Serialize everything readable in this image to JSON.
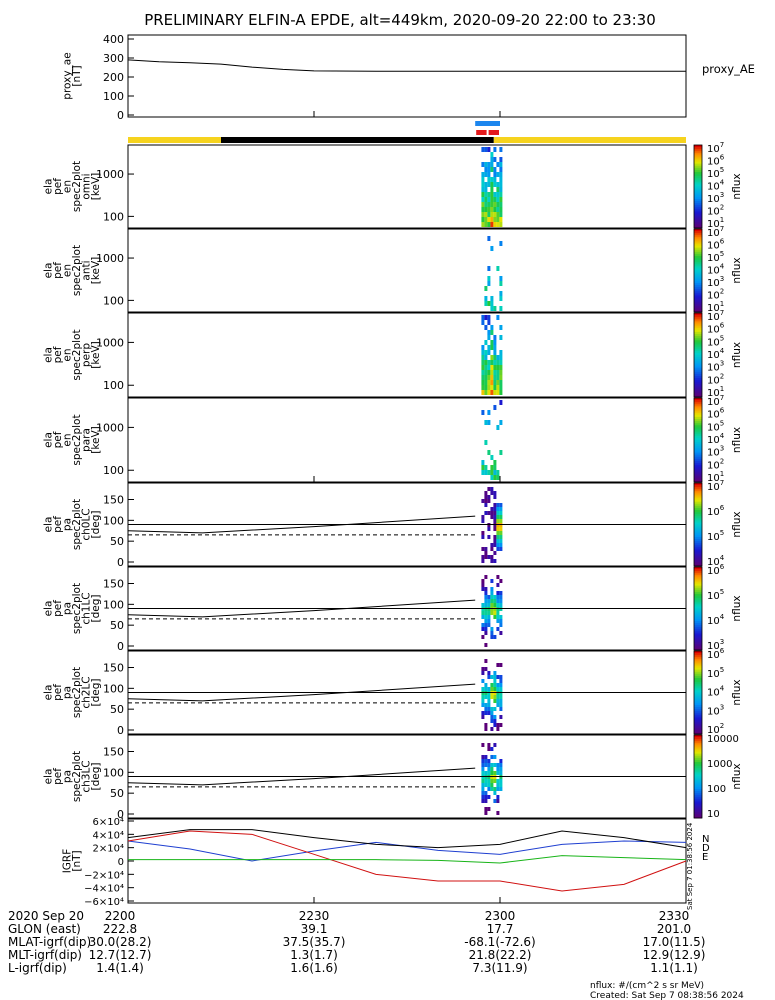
{
  "title": "PRELIMINARY ELFIN-A EPDE, alt=449km, 2020-09-20 22:00 to 23:30",
  "colors": {
    "yellow": "#f6d31e",
    "black": "#000000",
    "blue": "#1c86ee",
    "red": "#e41a1c",
    "bx": "#1f3fd0",
    "by": "#d01010",
    "bz": "#18b418"
  },
  "time_axis": {
    "start": "22:00",
    "end": "23:30",
    "ticks": [
      "2200",
      "2230",
      "2300",
      "2330"
    ]
  },
  "chart_data": [
    {
      "type": "line",
      "name": "proxy_ae",
      "ylabel_lines": [
        "proxy_ae",
        "[nT]"
      ],
      "legend": "proxy_AE",
      "yticks": [
        "400",
        "300",
        "200",
        "100",
        "0"
      ],
      "ylim": [
        0,
        400
      ],
      "x": [
        "22:00",
        "22:05",
        "22:10",
        "22:15",
        "22:20",
        "22:25",
        "22:30",
        "22:40",
        "22:50",
        "23:00",
        "23:30"
      ],
      "values": [
        290,
        280,
        275,
        268,
        252,
        240,
        232,
        230,
        230,
        230,
        230
      ]
    },
    {
      "type": "bar",
      "name": "status-bars",
      "segments": [
        {
          "from": "22:00",
          "to": "22:15",
          "color": "yellow"
        },
        {
          "from": "22:15",
          "to": "22:59",
          "color": "black"
        },
        {
          "from": "22:59",
          "to": "23:30",
          "color": "yellow"
        }
      ],
      "science_blue": [
        {
          "from": "22:56",
          "to": "23:00"
        }
      ],
      "science_red": [
        {
          "from": "22:56",
          "to": "22:58"
        },
        {
          "from": "22:58",
          "to": "23:00"
        }
      ]
    },
    {
      "type": "heatmap",
      "name": "spec-omni",
      "ylabel_lines": [
        "ela",
        "pef",
        "en",
        "spec2plot",
        "omni",
        "[keV]"
      ],
      "yticks": [
        "1000",
        "100"
      ],
      "colorbar": {
        "label": "nflux",
        "ticks": [
          "10^7",
          "10^6",
          "10^5",
          "10^4",
          "10^3",
          "10^2",
          "10^1"
        ]
      }
    },
    {
      "type": "heatmap",
      "name": "spec-anti",
      "ylabel_lines": [
        "ela",
        "pef",
        "en",
        "spec2plot",
        "anti",
        "[keV]"
      ],
      "yticks": [
        "1000",
        "100"
      ],
      "colorbar": {
        "label": "nflux",
        "ticks": [
          "10^7",
          "10^6",
          "10^5",
          "10^4",
          "10^3",
          "10^2",
          "10^1"
        ]
      }
    },
    {
      "type": "heatmap",
      "name": "spec-perp",
      "ylabel_lines": [
        "ela",
        "pef",
        "en",
        "spec2plot",
        "perp",
        "[keV]"
      ],
      "yticks": [
        "1000",
        "100"
      ],
      "colorbar": {
        "label": "nflux",
        "ticks": [
          "10^7",
          "10^6",
          "10^5",
          "10^4",
          "10^3",
          "10^2",
          "10^1"
        ]
      }
    },
    {
      "type": "heatmap",
      "name": "spec-para",
      "ylabel_lines": [
        "ela",
        "pef",
        "en",
        "spec2plot",
        "para",
        "[keV]"
      ],
      "yticks": [
        "1000",
        "100"
      ],
      "colorbar": {
        "label": "nflux",
        "ticks": [
          "10^7",
          "10^6",
          "10^5",
          "10^4",
          "10^3",
          "10^2",
          "10^1"
        ]
      }
    },
    {
      "type": "heatmap",
      "name": "pa-ch0LC",
      "ylabel_lines": [
        "ela",
        "pef",
        "pa",
        "spec2plot",
        "ch0LC",
        "[deg]"
      ],
      "yticks": [
        "150",
        "100",
        "50",
        "0"
      ],
      "ylim": [
        0,
        180
      ],
      "colorbar": {
        "label": "nflux",
        "ticks": [
          "10^7",
          "10^6",
          "10^5",
          "10^4"
        ]
      }
    },
    {
      "type": "heatmap",
      "name": "pa-ch1LC",
      "ylabel_lines": [
        "ela",
        "pef",
        "pa",
        "spec2plot",
        "ch1LC",
        "[deg]"
      ],
      "yticks": [
        "150",
        "100",
        "50",
        "0"
      ],
      "ylim": [
        0,
        180
      ],
      "colorbar": {
        "label": "nflux",
        "ticks": [
          "10^6",
          "10^5",
          "10^4",
          "10^3"
        ]
      }
    },
    {
      "type": "heatmap",
      "name": "pa-ch2LC",
      "ylabel_lines": [
        "ela",
        "pef",
        "pa",
        "spec2plot",
        "ch2LC",
        "[deg]"
      ],
      "yticks": [
        "150",
        "100",
        "50",
        "0"
      ],
      "ylim": [
        0,
        180
      ],
      "colorbar": {
        "label": "nflux",
        "ticks": [
          "10^6",
          "10^5",
          "10^4",
          "10^3",
          "10^2"
        ]
      }
    },
    {
      "type": "heatmap",
      "name": "pa-ch3LC",
      "ylabel_lines": [
        "ela",
        "pef",
        "pa",
        "spec2plot",
        "ch3LC",
        "[deg]"
      ],
      "yticks": [
        "150",
        "100",
        "50",
        "0"
      ],
      "ylim": [
        0,
        180
      ],
      "colorbar": {
        "label": "nflux",
        "ticks": [
          "10000",
          "1000",
          "100",
          "10"
        ]
      }
    },
    {
      "type": "line",
      "name": "igrf",
      "ylabel_lines": [
        "IGRF",
        "[nT]"
      ],
      "yticks": [
        "6×10⁴",
        "4×10⁴",
        "2×10⁴",
        "0",
        "−2×10⁴",
        "−4×10⁴",
        "−6×10⁴"
      ],
      "ylim": [
        -60000,
        60000
      ],
      "legend": [
        "N",
        "D",
        "E"
      ],
      "x": [
        "22:00",
        "22:10",
        "22:20",
        "22:30",
        "22:40",
        "22:50",
        "23:00",
        "23:10",
        "23:20",
        "23:30"
      ],
      "series": [
        {
          "name": "N",
          "color": "bx",
          "values": [
            30000,
            18000,
            0,
            15000,
            28000,
            16000,
            10000,
            25000,
            30000,
            28000
          ]
        },
        {
          "name": "D",
          "color": "by",
          "values": [
            30000,
            45000,
            40000,
            10000,
            -20000,
            -30000,
            -30000,
            -45000,
            -35000,
            0
          ]
        },
        {
          "name": "E",
          "color": "bz",
          "values": [
            2000,
            2000,
            2000,
            2000,
            2000,
            1000,
            -3000,
            8000,
            5000,
            2000
          ]
        },
        {
          "color": "black",
          "values": [
            35000,
            47000,
            47000,
            35000,
            25000,
            20000,
            25000,
            45000,
            35000,
            20000
          ]
        }
      ]
    }
  ],
  "info_rows": [
    {
      "label": "2020 Sep 20",
      "values": [
        "2200",
        "2230",
        "2300",
        "2330"
      ]
    },
    {
      "label": "GLON (east)",
      "values": [
        "222.8",
        "39.1",
        "17.7",
        "201.0"
      ]
    },
    {
      "label": "MLAT-igrf(dip)",
      "values": [
        "30.0(28.2)",
        "37.5(35.7)",
        "-68.1(-72.6)",
        "17.0(11.5)"
      ]
    },
    {
      "label": "MLT-igrf(dip)",
      "values": [
        "12.7(12.7)",
        "1.3(1.7)",
        "21.8(22.2)",
        "12.9(12.9)"
      ]
    },
    {
      "label": "L-igrf(dip)",
      "values": [
        "1.4(1.4)",
        "1.6(1.6)",
        "7.3(11.9)",
        "1.1(1.1)"
      ]
    }
  ],
  "footer": {
    "units": "nflux: #/(cm^2 s sr MeV)",
    "created": "Created: Sat Sep  7 08:38:56 2024",
    "side_stamp": "Sat Sep  7 01:38:56 2024"
  }
}
